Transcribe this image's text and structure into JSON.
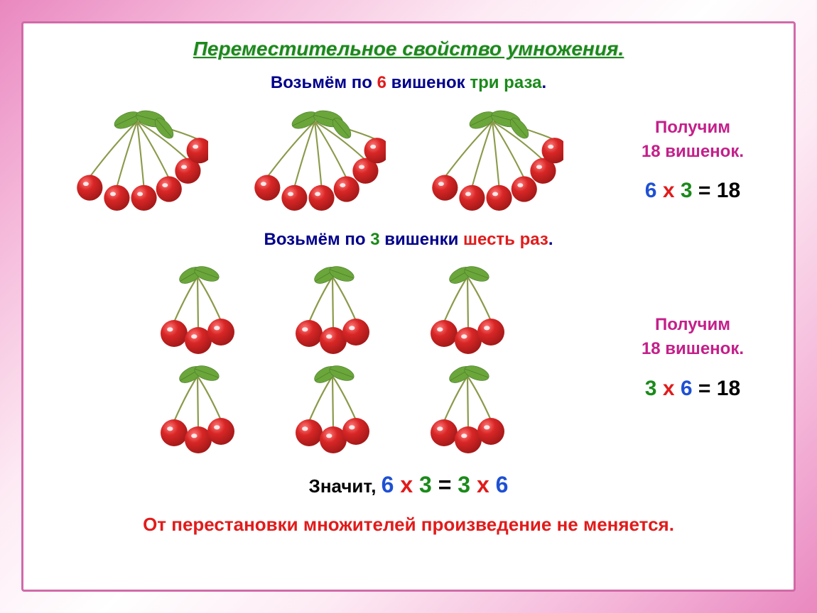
{
  "colors": {
    "green": "#1a8a1a",
    "darkblue": "#00008b",
    "blue": "#1e50d4",
    "red": "#e21b1b",
    "magenta": "#c41f8a",
    "black": "#000000",
    "cherry_red": "#d92626",
    "cherry_dark": "#a01818",
    "cherry_hilite": "#ffffff",
    "leaf": "#6aa63a",
    "leaf_dark": "#4a7a28",
    "stem": "#8a9a4a"
  },
  "title": "Переместительное свойство умножения.",
  "line1": {
    "pre": "Возьмём по ",
    "n": "6",
    "mid": " вишенок ",
    "times": "три раза",
    "post": "."
  },
  "group1": {
    "count": 3,
    "result_label": "Получим",
    "result_value": "18 вишенок.",
    "eq": {
      "a": "6",
      "x": "х",
      "b": "3",
      "eq": "=",
      "r": "18"
    }
  },
  "line2": {
    "pre": "Возьмём по ",
    "n": "3",
    "mid": " вишенки ",
    "times": "шесть раз",
    "post": "."
  },
  "group2": {
    "rows": 2,
    "cols": 3,
    "result_label": "Получим",
    "result_value": "18 вишенок.",
    "eq": {
      "a": "3",
      "x": "х",
      "b": "6",
      "eq": "=",
      "r": "18"
    }
  },
  "conclusion": {
    "pre": "Значит, ",
    "a": "6",
    "x1": "х",
    "b": "3",
    "eq": "=",
    "c": "3",
    "x2": "х",
    "d": "6"
  },
  "final": "От перестановки множителей произведение не меняется."
}
